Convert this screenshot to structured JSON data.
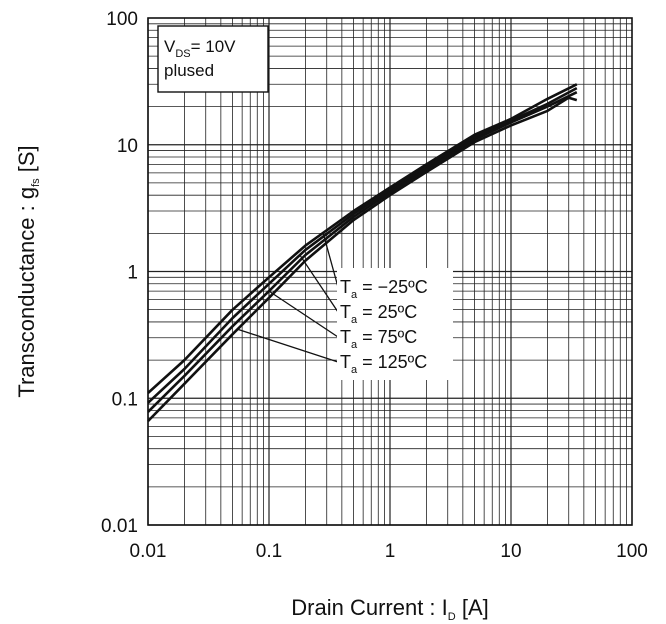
{
  "chart_data": {
    "type": "line",
    "x_scale": "log",
    "y_scale": "log",
    "xlim": [
      0.01,
      100
    ],
    "ylim": [
      0.01,
      100
    ],
    "grid": true,
    "xlabel": {
      "main": "Drain Current : I",
      "sub": "D",
      "unit": " [A]"
    },
    "ylabel": {
      "main": "Transconductance : g",
      "sub": "fs",
      "unit": " [S]"
    },
    "x_ticks": [
      {
        "value": 0.01,
        "label": "0.01"
      },
      {
        "value": 0.1,
        "label": "0.1"
      },
      {
        "value": 1,
        "label": "1"
      },
      {
        "value": 10,
        "label": "10"
      },
      {
        "value": 100,
        "label": "100"
      }
    ],
    "y_ticks": [
      {
        "value": 0.01,
        "label": "0.01"
      },
      {
        "value": 0.1,
        "label": "0.1"
      },
      {
        "value": 1,
        "label": "1"
      },
      {
        "value": 10,
        "label": "10"
      },
      {
        "value": 100,
        "label": "100"
      }
    ],
    "condition_box": {
      "line1_main": "V",
      "line1_sub": "DS",
      "line1_rest": "= 10V",
      "line2": "plused"
    },
    "series": [
      {
        "name_main": "T",
        "name_sub": "a",
        "name_rest": " = −25ºC",
        "x": [
          0.01,
          0.02,
          0.05,
          0.1,
          0.2,
          0.5,
          1,
          2,
          5,
          10,
          20,
          35
        ],
        "y": [
          0.11,
          0.2,
          0.5,
          0.9,
          1.6,
          3.0,
          4.6,
          7.0,
          12.0,
          16.0,
          23.0,
          30.0
        ]
      },
      {
        "name_main": "T",
        "name_sub": "a",
        "name_rest": " = 25ºC",
        "x": [
          0.01,
          0.02,
          0.05,
          0.1,
          0.2,
          0.5,
          1,
          2,
          5,
          10,
          20,
          35
        ],
        "y": [
          0.092,
          0.17,
          0.43,
          0.8,
          1.48,
          2.85,
          4.4,
          6.7,
          11.5,
          15.5,
          21.0,
          28.0
        ]
      },
      {
        "name_main": "T",
        "name_sub": "a",
        "name_rest": " = 75ºC",
        "x": [
          0.01,
          0.02,
          0.05,
          0.1,
          0.2,
          0.5,
          1,
          2,
          5,
          10,
          20,
          35
        ],
        "y": [
          0.078,
          0.15,
          0.37,
          0.7,
          1.35,
          2.7,
          4.2,
          6.4,
          11.0,
          15.0,
          20.0,
          26.0
        ]
      },
      {
        "name_main": "T",
        "name_sub": "a",
        "name_rest": " = 125ºC",
        "x": [
          0.01,
          0.02,
          0.05,
          0.1,
          0.2,
          0.5,
          1,
          2,
          5,
          10,
          20,
          30,
          35
        ],
        "y": [
          0.066,
          0.13,
          0.32,
          0.62,
          1.22,
          2.55,
          4.0,
          6.1,
          10.5,
          14.2,
          18.5,
          23.5,
          22.5
        ]
      }
    ],
    "line_color": "#111111",
    "grid_color": "#222222",
    "background": "#ffffff"
  }
}
